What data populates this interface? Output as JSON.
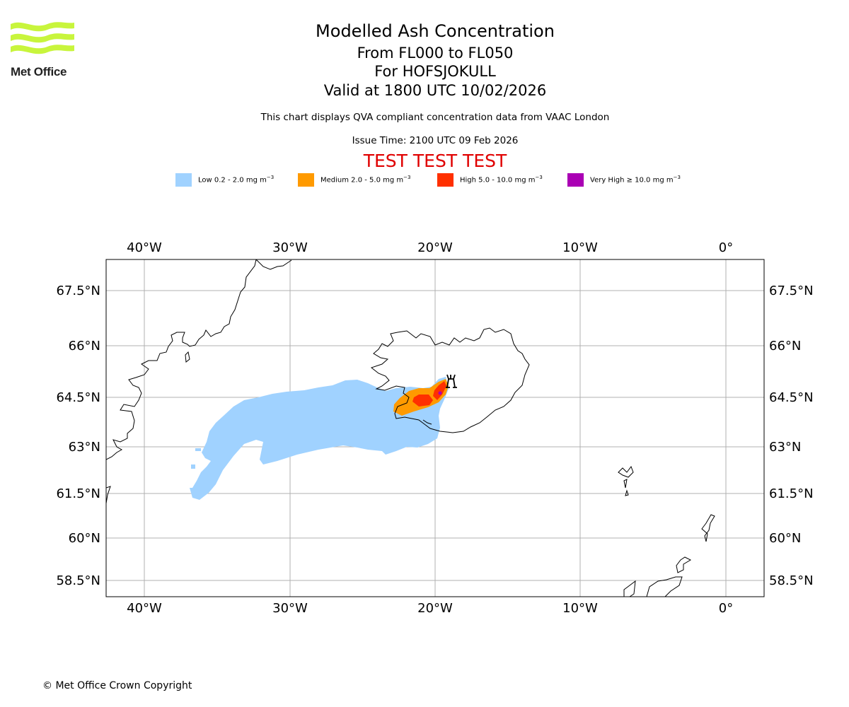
{
  "header": {
    "logo_text": "Met Office",
    "title": "Modelled Ash Concentration",
    "levels": "From FL000 to FL050",
    "volcano": "For HOFSJOKULL",
    "valid": "Valid at 1800 UTC 10/02/2026",
    "subtitle": "This chart displays QVA compliant concentration data from VAAC London",
    "issue_time": "Issue Time: 2100 UTC 09 Feb 2026",
    "test_banner": "TEST TEST TEST"
  },
  "legend": [
    {
      "label": "Low 0.2 - 2.0 mg m",
      "unit_exp": "−3",
      "color": "#a0d2ff"
    },
    {
      "label": "Medium 2.0 - 5.0 mg m",
      "unit_exp": "−3",
      "color": "#ff9a00"
    },
    {
      "label": "High 5.0 - 10.0 mg m",
      "unit_exp": "−3",
      "color": "#ff3000"
    },
    {
      "label": "Very High ≥ 10.0 mg m",
      "unit_exp": "−3",
      "color": "#aa00b4"
    }
  ],
  "map": {
    "lon_ticks": [
      "40°W",
      "30°W",
      "20°W",
      "10°W",
      "0°"
    ],
    "lat_ticks": [
      "67.5°N",
      "66°N",
      "64.5°N",
      "63°N",
      "61.5°N",
      "60°N",
      "58.5°N"
    ],
    "source_symbol": "volcano-icon",
    "colors": {
      "grid": "#b0b0b0",
      "coast": "#000000",
      "test": "#e00000"
    }
  },
  "footer": {
    "copyright": "© Met Office Crown Copyright"
  }
}
